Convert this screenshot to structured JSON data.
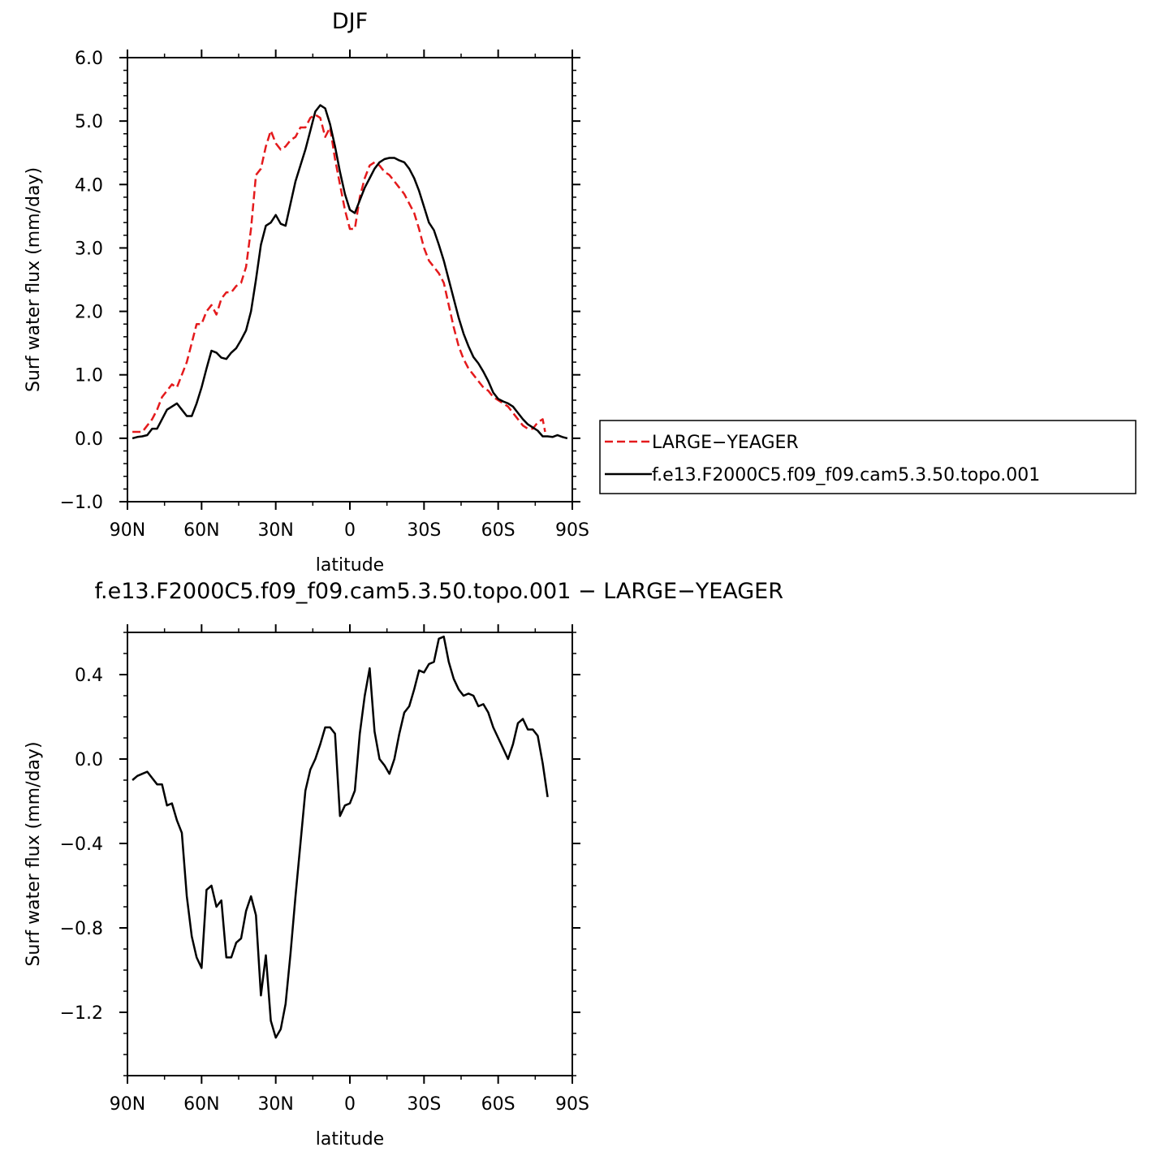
{
  "chart_data": [
    {
      "type": "line",
      "title": "DJF",
      "xlabel": "latitude",
      "ylabel": "Surf  water  flux  (mm/day)",
      "xlim": [
        -90,
        90
      ],
      "ylim": [
        -1.0,
        6.0
      ],
      "xticks": [
        -90,
        -60,
        -30,
        0,
        30,
        60,
        90
      ],
      "xtick_labels": [
        "90N",
        "60N",
        "30N",
        "0",
        "30S",
        "60S",
        "90S"
      ],
      "yticks": [
        -1.0,
        0.0,
        1.0,
        2.0,
        3.0,
        4.0,
        5.0,
        6.0
      ],
      "ytick_labels": [
        "−1.0",
        "0.0",
        "1.0",
        "2.0",
        "3.0",
        "4.0",
        "5.0",
        "6.0"
      ],
      "legend_position": "right",
      "series": [
        {
          "name": "LARGE−YEAGER",
          "color": "#e41a1c",
          "dash": true,
          "x": [
            -88,
            -84,
            -82,
            -80,
            -78,
            -76,
            -74,
            -72,
            -70,
            -68,
            -66,
            -64,
            -62,
            -60,
            -58,
            -56,
            -54,
            -52,
            -50,
            -48,
            -46,
            -44,
            -42,
            -40,
            -38,
            -36,
            -34,
            -32,
            -30,
            -28,
            -26,
            -24,
            -22,
            -20,
            -18,
            -16,
            -14,
            -12,
            -10,
            -8,
            -6,
            -4,
            -2,
            0,
            2,
            4,
            6,
            8,
            10,
            12,
            14,
            16,
            18,
            20,
            22,
            24,
            26,
            28,
            30,
            32,
            34,
            36,
            38,
            40,
            42,
            44,
            46,
            48,
            50,
            52,
            54,
            56,
            58,
            60,
            62,
            64,
            66,
            68,
            70,
            72,
            74,
            76,
            78,
            79
          ],
          "y": [
            0.1,
            0.1,
            0.2,
            0.3,
            0.45,
            0.65,
            0.75,
            0.85,
            0.8,
            1.0,
            1.2,
            1.5,
            1.8,
            1.8,
            2.0,
            2.1,
            1.95,
            2.2,
            2.3,
            2.3,
            2.4,
            2.45,
            2.7,
            3.3,
            4.15,
            4.25,
            4.6,
            4.85,
            4.65,
            4.55,
            4.6,
            4.7,
            4.75,
            4.9,
            4.9,
            5.05,
            5.1,
            5.05,
            4.75,
            4.9,
            4.4,
            4.0,
            3.6,
            3.3,
            3.3,
            3.8,
            4.1,
            4.3,
            4.35,
            4.3,
            4.2,
            4.15,
            4.05,
            3.95,
            3.85,
            3.7,
            3.55,
            3.3,
            3.0,
            2.8,
            2.7,
            2.6,
            2.45,
            2.1,
            1.75,
            1.45,
            1.25,
            1.1,
            1.0,
            0.9,
            0.8,
            0.75,
            0.65,
            0.6,
            0.55,
            0.5,
            0.4,
            0.3,
            0.2,
            0.15,
            0.15,
            0.25,
            0.3,
            0.1
          ]
        },
        {
          "name": "f.e13.F2000C5.f09_f09.cam5.3.50.topo.001",
          "color": "#000000",
          "dash": false,
          "x": [
            -88,
            -86,
            -84,
            -82,
            -80,
            -78,
            -76,
            -74,
            -72,
            -70,
            -68,
            -66,
            -64,
            -62,
            -60,
            -58,
            -56,
            -54,
            -52,
            -50,
            -48,
            -46,
            -44,
            -42,
            -40,
            -38,
            -36,
            -34,
            -32,
            -30,
            -28,
            -26,
            -24,
            -22,
            -20,
            -18,
            -16,
            -14,
            -12,
            -10,
            -8,
            -6,
            -4,
            -2,
            0,
            2,
            4,
            6,
            8,
            10,
            12,
            14,
            16,
            18,
            20,
            22,
            24,
            26,
            28,
            30,
            32,
            34,
            36,
            38,
            40,
            42,
            44,
            46,
            48,
            50,
            52,
            54,
            56,
            58,
            60,
            62,
            64,
            66,
            68,
            70,
            72,
            74,
            76,
            78,
            80,
            82,
            84,
            86,
            88
          ],
          "y": [
            0.0,
            0.02,
            0.03,
            0.05,
            0.15,
            0.15,
            0.3,
            0.45,
            0.5,
            0.55,
            0.45,
            0.35,
            0.35,
            0.55,
            0.8,
            1.1,
            1.38,
            1.35,
            1.27,
            1.25,
            1.35,
            1.42,
            1.55,
            1.7,
            2.0,
            2.5,
            3.05,
            3.35,
            3.4,
            3.52,
            3.38,
            3.35,
            3.7,
            4.05,
            4.3,
            4.55,
            4.85,
            5.15,
            5.25,
            5.2,
            4.95,
            4.6,
            4.2,
            3.85,
            3.6,
            3.55,
            3.75,
            3.95,
            4.1,
            4.25,
            4.35,
            4.4,
            4.42,
            4.42,
            4.38,
            4.35,
            4.25,
            4.1,
            3.9,
            3.65,
            3.4,
            3.28,
            3.05,
            2.8,
            2.5,
            2.2,
            1.9,
            1.65,
            1.45,
            1.28,
            1.18,
            1.05,
            0.9,
            0.72,
            0.62,
            0.58,
            0.55,
            0.5,
            0.4,
            0.3,
            0.22,
            0.17,
            0.12,
            0.03,
            0.03,
            0.02,
            0.05,
            0.02,
            0.0
          ]
        }
      ]
    },
    {
      "type": "line",
      "title": "f.e13.F2000C5.f09_f09.cam5.3.50.topo.001  −  LARGE−YEAGER",
      "xlabel": "latitude",
      "ylabel": "Surf  water  flux  (mm/day)",
      "xlim": [
        -90,
        90
      ],
      "ylim": [
        -1.5,
        0.6
      ],
      "xticks": [
        -90,
        -60,
        -30,
        0,
        30,
        60,
        90
      ],
      "xtick_labels": [
        "90N",
        "60N",
        "30N",
        "0",
        "30S",
        "60S",
        "90S"
      ],
      "yticks": [
        -1.2,
        -0.8,
        -0.4,
        0.0,
        0.4
      ],
      "ytick_labels": [
        "−1.2",
        "−0.8",
        "−0.4",
        "0.0",
        "0.4"
      ],
      "series": [
        {
          "color": "#000000",
          "dash": false,
          "x": [
            -88,
            -86,
            -84,
            -82,
            -80,
            -78,
            -76,
            -74,
            -72,
            -70,
            -68,
            -66,
            -64,
            -62,
            -60,
            -58,
            -56,
            -54,
            -52,
            -50,
            -48,
            -46,
            -44,
            -42,
            -40,
            -38,
            -36,
            -34,
            -32,
            -30,
            -28,
            -26,
            -24,
            -22,
            -20,
            -18,
            -16,
            -14,
            -12,
            -10,
            -8,
            -6,
            -4,
            -2,
            0,
            2,
            4,
            6,
            8,
            10,
            12,
            14,
            16,
            18,
            20,
            22,
            24,
            26,
            28,
            30,
            32,
            34,
            36,
            38,
            40,
            42,
            44,
            46,
            48,
            50,
            52,
            54,
            56,
            58,
            60,
            62,
            64,
            66,
            68,
            70,
            72,
            74,
            76,
            78,
            80
          ],
          "y": [
            -0.1,
            -0.08,
            -0.07,
            -0.06,
            -0.09,
            -0.12,
            -0.12,
            -0.22,
            -0.21,
            -0.29,
            -0.35,
            -0.65,
            -0.84,
            -0.94,
            -0.99,
            -0.62,
            -0.6,
            -0.7,
            -0.67,
            -0.94,
            -0.94,
            -0.87,
            -0.85,
            -0.72,
            -0.65,
            -0.74,
            -1.12,
            -0.93,
            -1.24,
            -1.32,
            -1.28,
            -1.16,
            -0.92,
            -0.65,
            -0.4,
            -0.15,
            -0.05,
            0.0,
            0.07,
            0.15,
            0.15,
            0.12,
            -0.27,
            -0.22,
            -0.21,
            -0.15,
            0.12,
            0.3,
            0.43,
            0.13,
            0.0,
            -0.03,
            -0.07,
            0.0,
            0.12,
            0.22,
            0.25,
            0.33,
            0.42,
            0.41,
            0.45,
            0.46,
            0.57,
            0.58,
            0.46,
            0.38,
            0.33,
            0.3,
            0.31,
            0.3,
            0.25,
            0.26,
            0.22,
            0.15,
            0.1,
            0.05,
            0.0,
            0.07,
            0.17,
            0.19,
            0.14,
            0.14,
            0.11,
            -0.02,
            -0.18
          ]
        }
      ]
    }
  ]
}
